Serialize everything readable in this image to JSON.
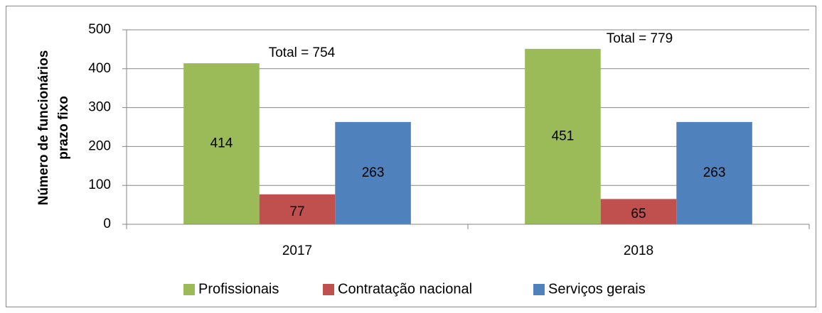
{
  "chart_data": {
    "type": "bar",
    "ylabel": [
      "Número de funcionários",
      "prazo fixo"
    ],
    "categories": [
      "2017",
      "2018"
    ],
    "series": [
      {
        "name": "Profissionais",
        "color": "#9bbb59",
        "values": [
          414,
          451
        ]
      },
      {
        "name": "Contratação nacional",
        "color": "#c0504d",
        "values": [
          77,
          65
        ]
      },
      {
        "name": "Serviços gerais",
        "color": "#4f81bd",
        "values": [
          263,
          263
        ]
      }
    ],
    "annotations": [
      "Total = 754",
      "Total = 779"
    ],
    "ylim": [
      0,
      500
    ],
    "yticks": [
      0,
      100,
      200,
      300,
      400,
      500
    ],
    "grid": true,
    "legend": "bottom"
  }
}
